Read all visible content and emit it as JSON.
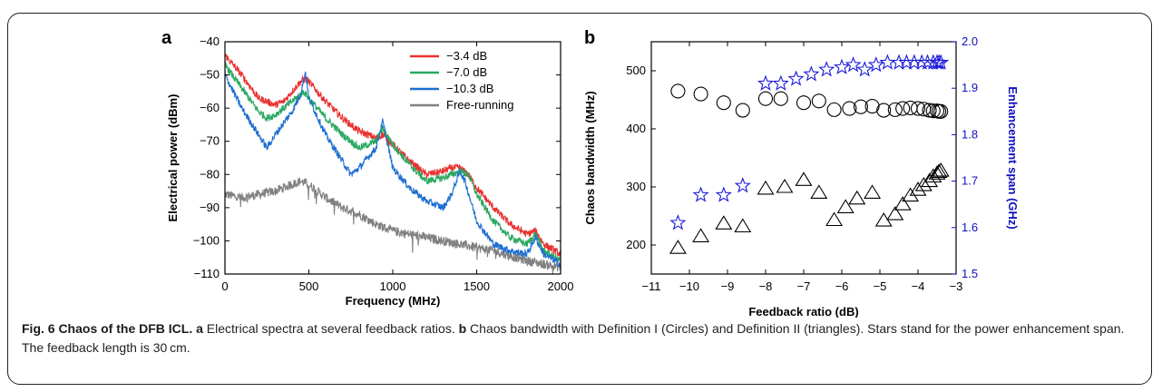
{
  "chart_data": [
    {
      "panel": "a",
      "type": "line",
      "xlabel": "Frequency (MHz)",
      "ylabel": "Electrical power (dBm)",
      "xlim": [
        0,
        2000
      ],
      "ylim": [
        -110,
        -40
      ],
      "xticks": [
        0,
        500,
        1000,
        1500,
        2000
      ],
      "yticks": [
        -40,
        -50,
        -60,
        -70,
        -80,
        -90,
        -100,
        -110
      ],
      "legend_position": "top-right",
      "series": [
        {
          "name": "−3.4 dB",
          "color": "#e8312f",
          "x": [
            0,
            100,
            200,
            300,
            350,
            400,
            450,
            480,
            500,
            600,
            700,
            800,
            900,
            940,
            1000,
            1100,
            1200,
            1300,
            1350,
            1400,
            1450,
            1500,
            1600,
            1700,
            1800,
            1850,
            1900,
            2000
          ],
          "y": [
            -44,
            -50,
            -57,
            -59,
            -58,
            -55,
            -52,
            -51,
            -52,
            -58,
            -63,
            -67,
            -69,
            -68,
            -71,
            -76,
            -80,
            -79,
            -78,
            -78,
            -80,
            -84,
            -90,
            -95,
            -98,
            -97,
            -101,
            -104
          ]
        },
        {
          "name": "−7.0 dB",
          "color": "#2aa860",
          "x": [
            0,
            100,
            200,
            250,
            300,
            400,
            470,
            500,
            600,
            700,
            800,
            900,
            940,
            1000,
            1100,
            1200,
            1300,
            1400,
            1450,
            1500,
            1600,
            1700,
            1800,
            1850,
            1900,
            2000
          ],
          "y": [
            -47,
            -54,
            -61,
            -63,
            -62,
            -58,
            -55,
            -57,
            -63,
            -68,
            -72,
            -70,
            -66,
            -71,
            -77,
            -82,
            -81,
            -79,
            -80,
            -86,
            -94,
            -99,
            -101,
            -98,
            -103,
            -106
          ]
        },
        {
          "name": "−10.3 dB",
          "color": "#1e6fd0",
          "x": [
            0,
            100,
            200,
            250,
            300,
            400,
            450,
            480,
            500,
            600,
            700,
            750,
            800,
            900,
            940,
            1000,
            1100,
            1200,
            1300,
            1350,
            1400,
            1430,
            1500,
            1600,
            1700,
            1800,
            1850,
            1900,
            2000
          ],
          "y": [
            -50,
            -60,
            -68,
            -72,
            -68,
            -61,
            -56,
            -49,
            -57,
            -68,
            -76,
            -80,
            -78,
            -72,
            -64,
            -78,
            -84,
            -88,
            -90,
            -86,
            -79,
            -82,
            -94,
            -101,
            -103,
            -104,
            -99,
            -104,
            -107
          ]
        },
        {
          "name": "Free-running",
          "color": "#808080",
          "x": [
            0,
            100,
            200,
            300,
            400,
            450,
            500,
            600,
            700,
            800,
            900,
            1000,
            1200,
            1400,
            1600,
            1800,
            2000
          ],
          "y": [
            -86,
            -87,
            -86,
            -85,
            -83,
            -82,
            -83,
            -87,
            -90,
            -92,
            -95,
            -97,
            -99,
            -101,
            -103,
            -106,
            -108
          ]
        }
      ]
    },
    {
      "panel": "b",
      "type": "scatter",
      "xlabel": "Feedback ratio (dB)",
      "ylabel": "Chaos bandwidth (MHz)",
      "y2label": "Enhancement span (GHz)",
      "xlim": [
        -11,
        -3
      ],
      "ylim": [
        150,
        550
      ],
      "y2lim": [
        1.5,
        2.0
      ],
      "xticks": [
        -11,
        -10,
        -9,
        -8,
        -7,
        -6,
        -5,
        -4,
        -3
      ],
      "xticklabels": [
        "−11",
        "−10",
        "−9",
        "−8",
        "−7",
        "−6",
        "−5",
        "−4",
        "−3"
      ],
      "yticks": [
        200,
        300,
        400,
        500
      ],
      "y2ticks": [
        "1.5",
        "1.6",
        "1.7",
        "1.8",
        "1.9",
        "2.0"
      ],
      "series": [
        {
          "name": "circles",
          "marker": "circle",
          "axis": "left",
          "x": [
            -10.3,
            -9.7,
            -9.1,
            -8.6,
            -8.0,
            -7.6,
            -7.0,
            -6.6,
            -6.2,
            -5.8,
            -5.5,
            -5.2,
            -4.9,
            -4.6,
            -4.4,
            -4.2,
            -4.0,
            -3.85,
            -3.7,
            -3.6,
            -3.5,
            -3.45,
            -3.4
          ],
          "y": [
            465,
            460,
            445,
            432,
            452,
            452,
            445,
            448,
            433,
            435,
            438,
            439,
            432,
            433,
            435,
            436,
            435,
            434,
            432,
            431,
            431,
            430,
            430
          ]
        },
        {
          "name": "triangles",
          "marker": "triangle",
          "axis": "left",
          "x": [
            -10.3,
            -9.7,
            -9.1,
            -8.6,
            -8.0,
            -7.5,
            -7.0,
            -6.6,
            -6.2,
            -5.9,
            -5.6,
            -5.2,
            -4.9,
            -4.6,
            -4.4,
            -4.2,
            -4.0,
            -3.85,
            -3.7,
            -3.6,
            -3.5,
            -3.45,
            -3.4
          ],
          "y": [
            195,
            215,
            237,
            232,
            297,
            300,
            312,
            290,
            243,
            265,
            280,
            290,
            242,
            253,
            270,
            285,
            295,
            303,
            310,
            318,
            323,
            326,
            328
          ]
        },
        {
          "name": "stars",
          "marker": "star",
          "axis": "right",
          "color": "#1a1ad8",
          "x": [
            -10.3,
            -9.7,
            -9.1,
            -8.6,
            -8.0,
            -7.6,
            -7.2,
            -6.8,
            -6.4,
            -6.0,
            -5.7,
            -5.4,
            -5.1,
            -4.8,
            -4.5,
            -4.3,
            -4.1,
            -3.9,
            -3.75,
            -3.6,
            -3.5,
            -3.45,
            -3.4
          ],
          "y": [
            1.61,
            1.67,
            1.67,
            1.69,
            1.91,
            1.91,
            1.92,
            1.93,
            1.94,
            1.945,
            1.95,
            1.94,
            1.95,
            1.955,
            1.955,
            1.955,
            1.955,
            1.955,
            1.955,
            1.955,
            1.955,
            1.955,
            1.955
          ]
        }
      ]
    }
  ],
  "panels": {
    "a": {
      "letter": "a",
      "legend": [
        "−3.4 dB",
        "−7.0 dB",
        "−10.3 dB",
        "Free-running"
      ]
    },
    "b": {
      "letter": "b"
    }
  },
  "caption": {
    "bold": "Fig. 6 Chaos of the DFB ICL.",
    "part_a_label": "a",
    "part_a_text": " Electrical spectra at several feedback ratios. ",
    "part_b_label": "b",
    "part_b_text": " Chaos bandwidth with Definition I (Circles) and Definition II (triangles). Stars stand for the power enhancement span. The feedback length is 30 cm."
  }
}
